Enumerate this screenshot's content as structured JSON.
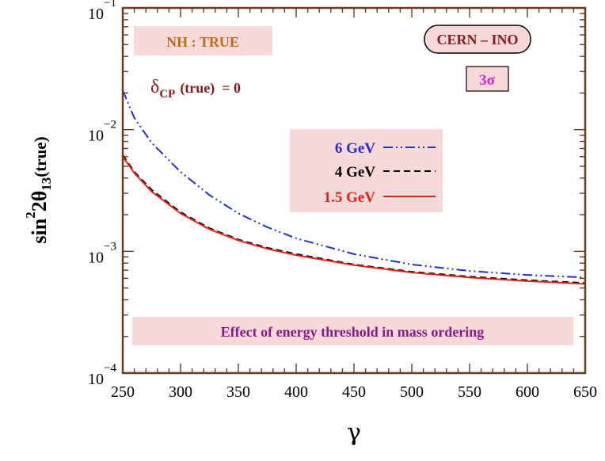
{
  "chart_data": {
    "type": "line",
    "xlabel": "γ",
    "ylabel": {
      "base": "sin",
      "sup": "2",
      "middle": "2θ",
      "sub": "13",
      "suffix": "(true)"
    },
    "xlim": [
      250,
      650
    ],
    "ylim": [
      0.0001,
      0.1
    ],
    "yscale": "log",
    "x_ticks": [
      250,
      300,
      350,
      400,
      450,
      500,
      550,
      600,
      650
    ],
    "y_ticks": [
      {
        "value": 0.1,
        "base": "10",
        "exp": "−1"
      },
      {
        "value": 0.01,
        "base": "10",
        "exp": "−2"
      },
      {
        "value": 0.001,
        "base": "10",
        "exp": "−3"
      },
      {
        "value": 0.0001,
        "base": "10",
        "exp": "−4"
      }
    ],
    "legend_placement": "center",
    "series": [
      {
        "name": "6 GeV",
        "color": "#1f2fd0",
        "dash": "dash-dot-dot",
        "x": [
          250,
          260,
          275,
          300,
          325,
          350,
          375,
          400,
          450,
          500,
          550,
          600,
          650
        ],
        "y": [
          0.021,
          0.0125,
          0.0078,
          0.0045,
          0.0029,
          0.00205,
          0.00158,
          0.00128,
          0.00095,
          0.00078,
          0.00069,
          0.00064,
          0.00061
        ]
      },
      {
        "name": "4 GeV",
        "color": "#000000",
        "dash": "dashed",
        "x": [
          250,
          260,
          275,
          300,
          325,
          350,
          375,
          400,
          450,
          500,
          550,
          600,
          650
        ],
        "y": [
          0.0062,
          0.0045,
          0.0032,
          0.0021,
          0.00155,
          0.00125,
          0.00107,
          0.00095,
          0.00078,
          0.00068,
          0.00062,
          0.00058,
          0.00055
        ]
      },
      {
        "name": "1.5 GeV",
        "color": "#e8201a",
        "dash": "solid",
        "x": [
          250,
          260,
          275,
          300,
          325,
          350,
          375,
          400,
          450,
          500,
          550,
          600,
          650
        ],
        "y": [
          0.006,
          0.0044,
          0.0031,
          0.00205,
          0.00152,
          0.00123,
          0.00105,
          0.00093,
          0.00077,
          0.00067,
          0.00061,
          0.00057,
          0.00054
        ]
      }
    ],
    "annotations": {
      "hierarchy": "NH : TRUE",
      "delta_prefix": "δ",
      "delta_sub": "CP",
      "delta_suffix": "(true)  = 0",
      "setup": "CERN – INO",
      "sigma": "3σ",
      "caption": "Effect of energy threshold in mass ordering"
    }
  },
  "colors": {
    "frame": "#6b3a1f",
    "box_fill": "#f8d9d9",
    "hierarchy_text": "#c06a10",
    "delta_text": "#8b1a1a",
    "setup_text": "#8b1a1a",
    "sigma_text": "#e020e0",
    "caption_text": "#8a1a8a"
  }
}
